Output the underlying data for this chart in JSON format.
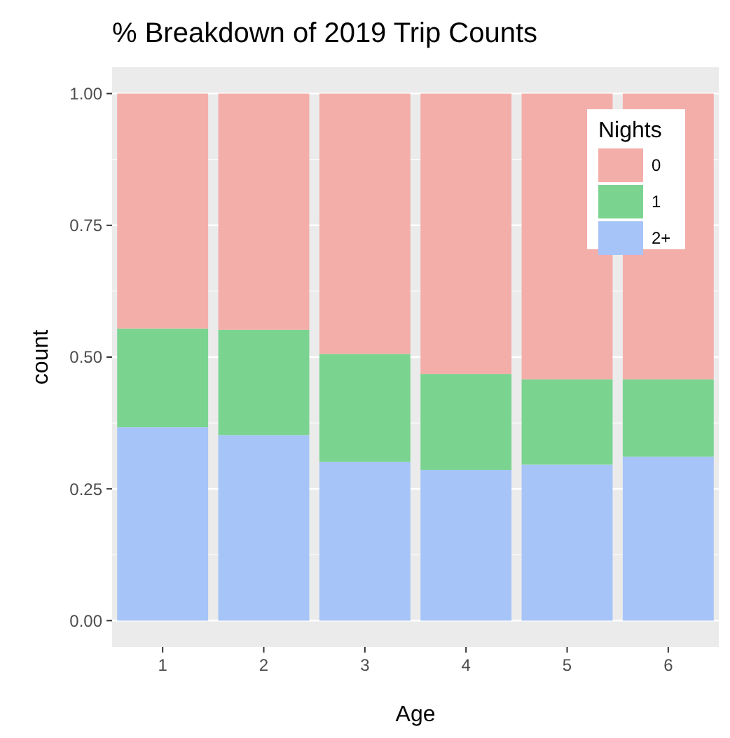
{
  "chart_data": {
    "type": "bar",
    "title": "% Breakdown of 2019 Trip Counts",
    "xlabel": "Age",
    "ylabel": "count",
    "legend_title": "Nights",
    "categories": [
      "1",
      "2",
      "3",
      "4",
      "5",
      "6"
    ],
    "stacked": true,
    "series": [
      {
        "name": "2+",
        "color": "#a6c4f8",
        "values": [
          0.367,
          0.352,
          0.301,
          0.286,
          0.296,
          0.311
        ]
      },
      {
        "name": "1",
        "color": "#7ad490",
        "values": [
          0.187,
          0.2,
          0.205,
          0.182,
          0.162,
          0.147
        ]
      },
      {
        "name": "0",
        "color": "#f4aeaa",
        "values": [
          0.446,
          0.448,
          0.494,
          0.532,
          0.542,
          0.542
        ]
      }
    ],
    "ylim": [
      -0.05,
      1.05
    ],
    "yticks": [
      {
        "value": 0,
        "label": "0.00"
      },
      {
        "value": 0.25,
        "label": "0.25"
      },
      {
        "value": 0.5,
        "label": "0.50"
      },
      {
        "value": 0.75,
        "label": "0.75"
      },
      {
        "value": 1,
        "label": "1.00"
      }
    ],
    "grid": "y",
    "legend": "top right"
  }
}
